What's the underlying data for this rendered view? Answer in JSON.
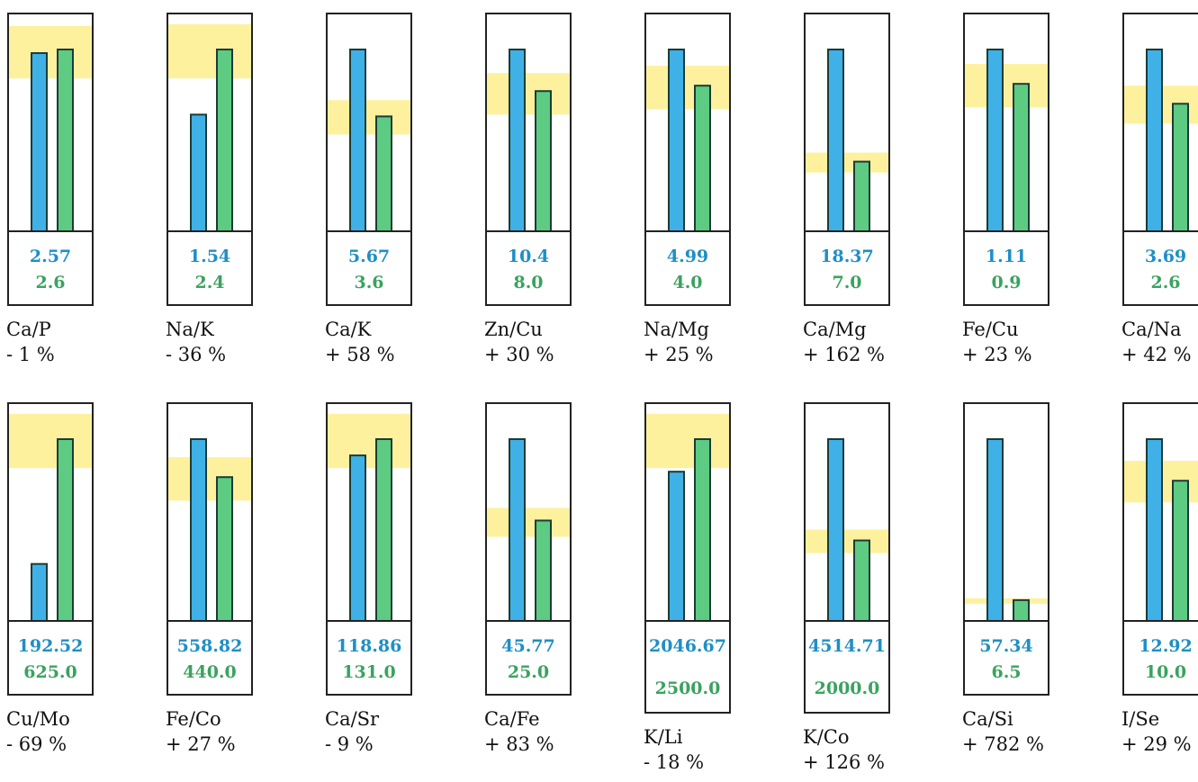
{
  "colors": {
    "measured": "#3fb1e6",
    "reference": "#5dcb82",
    "band": "#fdf19e",
    "measured_text": "#1e8fc6",
    "reference_text": "#3aa35f"
  },
  "chart_data": {
    "type": "bar",
    "panels": [
      {
        "ratio": "Ca/P",
        "measured": "2.57",
        "reference": "2.6",
        "diff": "- 1 %",
        "bar_fraction": [
          0.98,
          1.0
        ],
        "band": [
          0.84,
          1.13
        ]
      },
      {
        "ratio": "Na/K",
        "measured": "1.54",
        "reference": "2.4",
        "diff": "- 36 %",
        "bar_fraction": [
          0.64,
          1.0
        ],
        "band": [
          0.84,
          1.14
        ]
      },
      {
        "ratio": "Ca/K",
        "measured": "5.67",
        "reference": "3.6",
        "diff": "+ 58 %",
        "bar_fraction": [
          1.0,
          0.63
        ],
        "band": [
          0.53,
          0.72
        ]
      },
      {
        "ratio": "Zn/Cu",
        "measured": "10.4",
        "reference": "8.0",
        "diff": "+ 30 %",
        "bar_fraction": [
          1.0,
          0.77
        ],
        "band": [
          0.64,
          0.87
        ]
      },
      {
        "ratio": "Na/Mg",
        "measured": "4.99",
        "reference": "4.0",
        "diff": "+ 25 %",
        "bar_fraction": [
          1.0,
          0.8
        ],
        "band": [
          0.67,
          0.91
        ]
      },
      {
        "ratio": "Ca/Mg",
        "measured": "18.37",
        "reference": "7.0",
        "diff": "+ 162 %",
        "bar_fraction": [
          1.0,
          0.38
        ],
        "band": [
          0.32,
          0.43
        ]
      },
      {
        "ratio": "Fe/Cu",
        "measured": "1.11",
        "reference": "0.9",
        "diff": "+ 23 %",
        "bar_fraction": [
          1.0,
          0.81
        ],
        "band": [
          0.68,
          0.92
        ]
      },
      {
        "ratio": "Ca/Na",
        "measured": "3.69",
        "reference": "2.6",
        "diff": "+ 42 %",
        "bar_fraction": [
          1.0,
          0.7
        ],
        "band": [
          0.59,
          0.8
        ]
      },
      {
        "ratio": "Cu/Mo",
        "measured": "192.52",
        "reference": "625.0",
        "diff": "- 69 %",
        "bar_fraction": [
          0.31,
          1.0
        ],
        "band": [
          0.84,
          1.14
        ]
      },
      {
        "ratio": "Fe/Co",
        "measured": "558.82",
        "reference": "440.0",
        "diff": "+ 27 %",
        "bar_fraction": [
          1.0,
          0.79
        ],
        "band": [
          0.66,
          0.9
        ]
      },
      {
        "ratio": "Ca/Sr",
        "measured": "118.86",
        "reference": "131.0",
        "diff": "- 9 %",
        "bar_fraction": [
          0.91,
          1.0
        ],
        "band": [
          0.84,
          1.14
        ]
      },
      {
        "ratio": "Ca/Fe",
        "measured": "45.77",
        "reference": "25.0",
        "diff": "+ 83 %",
        "bar_fraction": [
          1.0,
          0.55
        ],
        "band": [
          0.46,
          0.62
        ]
      },
      {
        "ratio": "K/Li",
        "measured": "2046.67",
        "reference": "2500.0",
        "diff": "- 18 %",
        "bar_fraction": [
          0.82,
          1.0
        ],
        "band": [
          0.84,
          1.14
        ],
        "tall": true
      },
      {
        "ratio": "K/Co",
        "measured": "4514.71",
        "reference": "2000.0",
        "diff": "+ 126 %",
        "bar_fraction": [
          1.0,
          0.44
        ],
        "band": [
          0.37,
          0.5
        ],
        "tall": true
      },
      {
        "ratio": "Ca/Si",
        "measured": "57.34",
        "reference": "6.5",
        "diff": "+ 782 %",
        "bar_fraction": [
          1.0,
          0.11
        ],
        "band": [
          0.09,
          0.12
        ]
      },
      {
        "ratio": "I/Se",
        "measured": "12.92",
        "reference": "10.0",
        "diff": "+ 29 %",
        "bar_fraction": [
          1.0,
          0.77
        ],
        "band": [
          0.65,
          0.88
        ]
      }
    ]
  }
}
